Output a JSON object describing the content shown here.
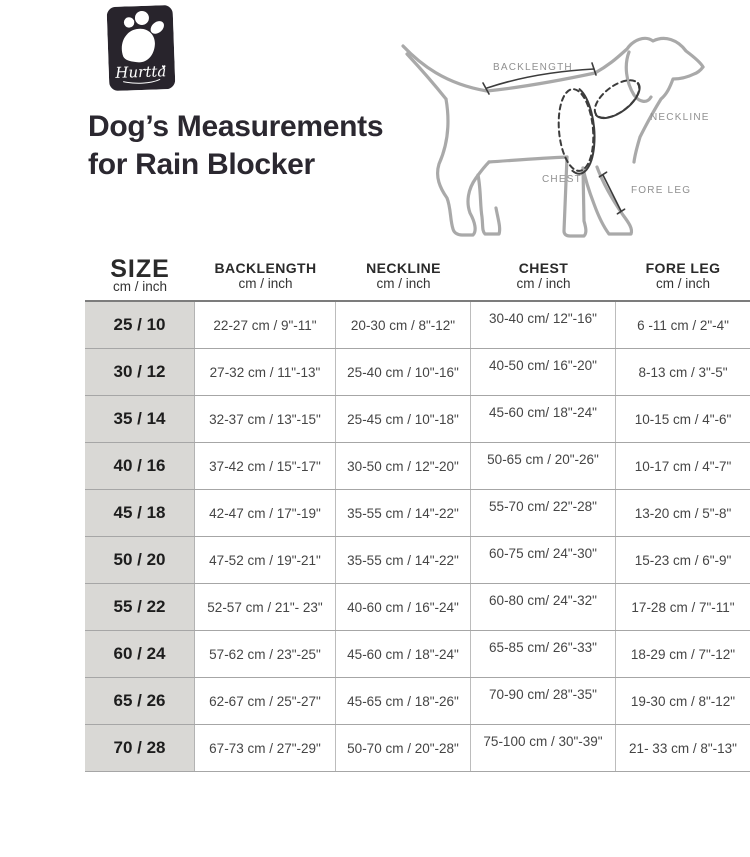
{
  "brand": {
    "logo_text": "Hurtta",
    "logo_bg": "#28242c",
    "logo_fg": "#ffffff"
  },
  "title": {
    "line1": "Dog’s Measurements",
    "line2": "for Rain Blocker"
  },
  "diagram": {
    "outline_color": "#a9a9a9",
    "measure_color": "#3c3c3c",
    "label_color": "#909090",
    "labels": {
      "backlength": "BACKLENGTH",
      "neckline": "NECKLINE",
      "chest": "CHEST",
      "foreleg": "FORE LEG"
    }
  },
  "table": {
    "columns": [
      {
        "title": "SIZE",
        "unit": "cm / inch"
      },
      {
        "title": "BACKLENGTH",
        "unit": "cm / inch"
      },
      {
        "title": "NECKLINE",
        "unit": "cm / inch"
      },
      {
        "title": "CHEST",
        "unit": "cm / inch"
      },
      {
        "title": "FORE LEG",
        "unit": "cm / inch"
      }
    ],
    "rows": [
      {
        "size": "25 / 10",
        "backlength": "22-27 cm / 9\"-11\"",
        "neckline": "20-30 cm / 8\"-12\"",
        "chest": "30-40 cm/ 12\"-16\"",
        "foreleg": "6 -11 cm / 2\"-4\""
      },
      {
        "size": "30 / 12",
        "backlength": "27-32 cm / 11\"-13\"",
        "neckline": "25-40 cm / 10\"-16\"",
        "chest": "40-50 cm/ 16\"-20\"",
        "foreleg": "8-13 cm / 3\"-5\""
      },
      {
        "size": "35 / 14",
        "backlength": "32-37 cm / 13\"-15\"",
        "neckline": "25-45 cm / 10\"-18\"",
        "chest": "45-60 cm/ 18\"-24\"",
        "foreleg": "10-15 cm / 4\"-6\""
      },
      {
        "size": "40 / 16",
        "backlength": "37-42 cm / 15\"-17\"",
        "neckline": "30-50 cm / 12\"-20\"",
        "chest": "50-65 cm / 20\"-26\"",
        "foreleg": "10-17 cm / 4\"-7\""
      },
      {
        "size": "45 / 18",
        "backlength": "42-47 cm / 17\"-19\"",
        "neckline": "35-55 cm / 14\"-22\"",
        "chest": "55-70 cm/ 22\"-28\"",
        "foreleg": "13-20 cm / 5\"-8\""
      },
      {
        "size": "50 / 20",
        "backlength": "47-52 cm / 19\"-21\"",
        "neckline": "35-55 cm / 14\"-22\"",
        "chest": "60-75 cm/ 24\"-30\"",
        "foreleg": "15-23 cm / 6\"-9\""
      },
      {
        "size": "55 / 22",
        "backlength": "52-57 cm / 21\"- 23\"",
        "neckline": "40-60 cm / 16\"-24\"",
        "chest": "60-80 cm/ 24\"-32\"",
        "foreleg": "17-28 cm / 7\"-11\""
      },
      {
        "size": "60 / 24",
        "backlength": "57-62 cm / 23\"-25\"",
        "neckline": "45-60 cm / 18\"-24\"",
        "chest": "65-85 cm/ 26\"-33\"",
        "foreleg": "18-29 cm / 7\"-12\""
      },
      {
        "size": "65 / 26",
        "backlength": "62-67 cm / 25\"-27\"",
        "neckline": "45-65 cm / 18\"-26\"",
        "chest": "70-90 cm/ 28\"-35\"",
        "foreleg": "19-30 cm / 8\"-12\""
      },
      {
        "size": "70 / 28",
        "backlength": "67-73 cm / 27\"-29\"",
        "neckline": "50-70 cm / 20\"-28\"",
        "chest": "75-100 cm / 30\"-39\"",
        "foreleg": "21- 33 cm / 8\"-13\""
      }
    ]
  }
}
